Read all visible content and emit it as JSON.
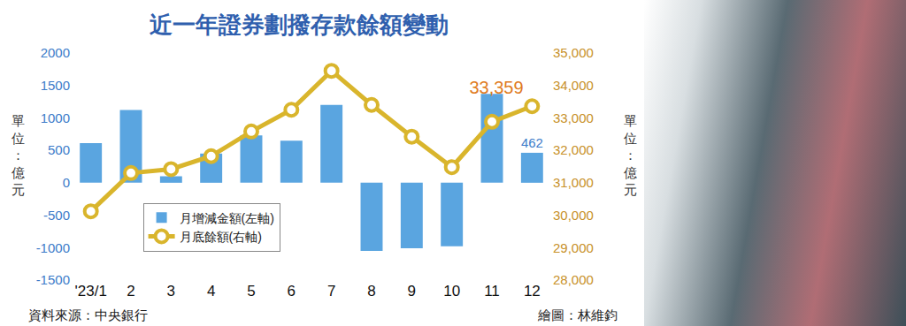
{
  "chart_data": {
    "type": "bar",
    "title": "近一年證券劃撥存款餘額變動",
    "categories": [
      "'23/1",
      "2",
      "3",
      "4",
      "5",
      "6",
      "7",
      "8",
      "9",
      "10",
      "11",
      "12"
    ],
    "series": [
      {
        "name": "月增減金額(左軸)",
        "type": "bar",
        "color": "#5aa5e0",
        "values": [
          610,
          1120,
          100,
          450,
          730,
          650,
          1200,
          -1050,
          -1010,
          -980,
          1370,
          462
        ],
        "value_labels": [
          null,
          null,
          null,
          null,
          null,
          null,
          null,
          null,
          null,
          null,
          null,
          "462"
        ]
      },
      {
        "name": "月底餘額(右軸)",
        "type": "line",
        "axis": "y2",
        "color": "#d9b52c",
        "marker": "circle",
        "values": [
          30120,
          31300,
          31420,
          31820,
          32580,
          33250,
          34450,
          33400,
          32420,
          31480,
          32880,
          33359
        ],
        "value_labels": [
          null,
          null,
          null,
          null,
          null,
          null,
          null,
          null,
          null,
          null,
          null,
          "33,359"
        ]
      }
    ],
    "y_label": "單位：億元",
    "y2_label": "單位：億元",
    "ylim": [
      -1500,
      2000
    ],
    "yticks": [
      -1500,
      -1000,
      -500,
      0,
      500,
      1000,
      1500,
      2000
    ],
    "y2lim": [
      28000,
      35000
    ],
    "y2ticks": [
      {
        "value": 28000,
        "label": "28,000"
      },
      {
        "value": 29000,
        "label": "29,000"
      },
      {
        "value": 30000,
        "label": "30,000"
      },
      {
        "value": 31000,
        "label": "31,000"
      },
      {
        "value": 32000,
        "label": "32,000"
      },
      {
        "value": 33000,
        "label": "33,000"
      },
      {
        "value": 34000,
        "label": "34,000"
      },
      {
        "value": 35000,
        "label": "35,000"
      }
    ],
    "annotations": [
      "資料來源：中央銀行",
      "繪圖：林維鈞"
    ],
    "grid": false,
    "legend": "lower left",
    "data_labels": true
  }
}
